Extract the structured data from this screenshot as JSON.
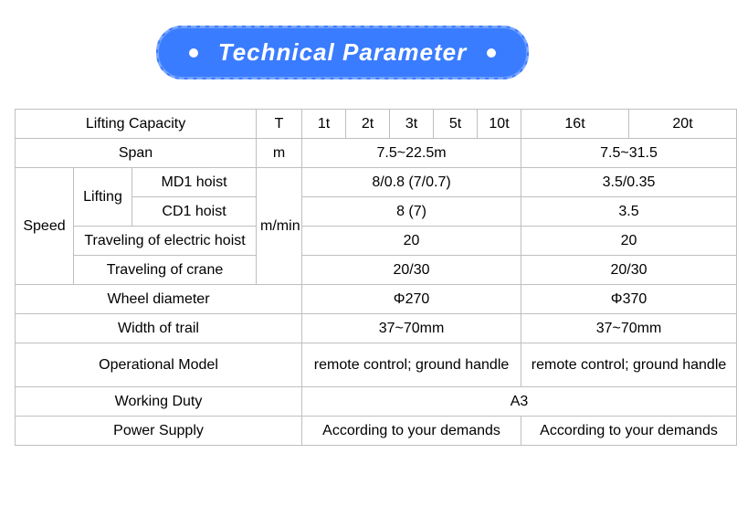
{
  "banner": {
    "title": "Technical  Parameter"
  },
  "colors": {
    "banner_bg": "#3a7cff",
    "banner_text": "#ffffff",
    "border": "#bfbfbf",
    "page_bg": "#ffffff",
    "text": "#000000"
  },
  "headers": {
    "lifting_capacity": "Lifting Capacity",
    "unit_T": "T",
    "c_1t": "1t",
    "c_2t": "2t",
    "c_3t": "3t",
    "c_5t": "5t",
    "c_10t": "10t",
    "c_16t": "16t",
    "c_20t": "20t"
  },
  "rows": {
    "span": {
      "label": "Span",
      "unit": "m",
      "g1": "7.5~22.5m",
      "g2": "7.5~31.5"
    },
    "speed_label": "Speed",
    "lifting_label": "Lifting",
    "md1": {
      "label": "MD1 hoist",
      "g1": "8/0.8 (7/0.7)",
      "g2": "3.5/0.35"
    },
    "cd1": {
      "label": "CD1 hoist",
      "g1": "8 (7)",
      "g2": "3.5"
    },
    "speed_unit": "m/min",
    "trav_hoist": {
      "label": "Traveling of electric hoist",
      "g1": "20",
      "g2": "20"
    },
    "trav_crane": {
      "label": "Traveling of crane",
      "g1": "20/30",
      "g2": "20/30"
    },
    "wheel": {
      "label": "Wheel diameter",
      "g1": "Φ270",
      "g2": "Φ370"
    },
    "trail": {
      "label": "Width of trail",
      "g1": "37~70mm",
      "g2": "37~70mm"
    },
    "opmodel": {
      "label": "Operational Model",
      "g1": "remote control; ground handle",
      "g2": "remote control; ground handle"
    },
    "duty": {
      "label": "Working Duty",
      "val": "A3"
    },
    "power": {
      "label": "Power Supply",
      "g1": "According to your demands",
      "g2": "According to your demands"
    }
  }
}
